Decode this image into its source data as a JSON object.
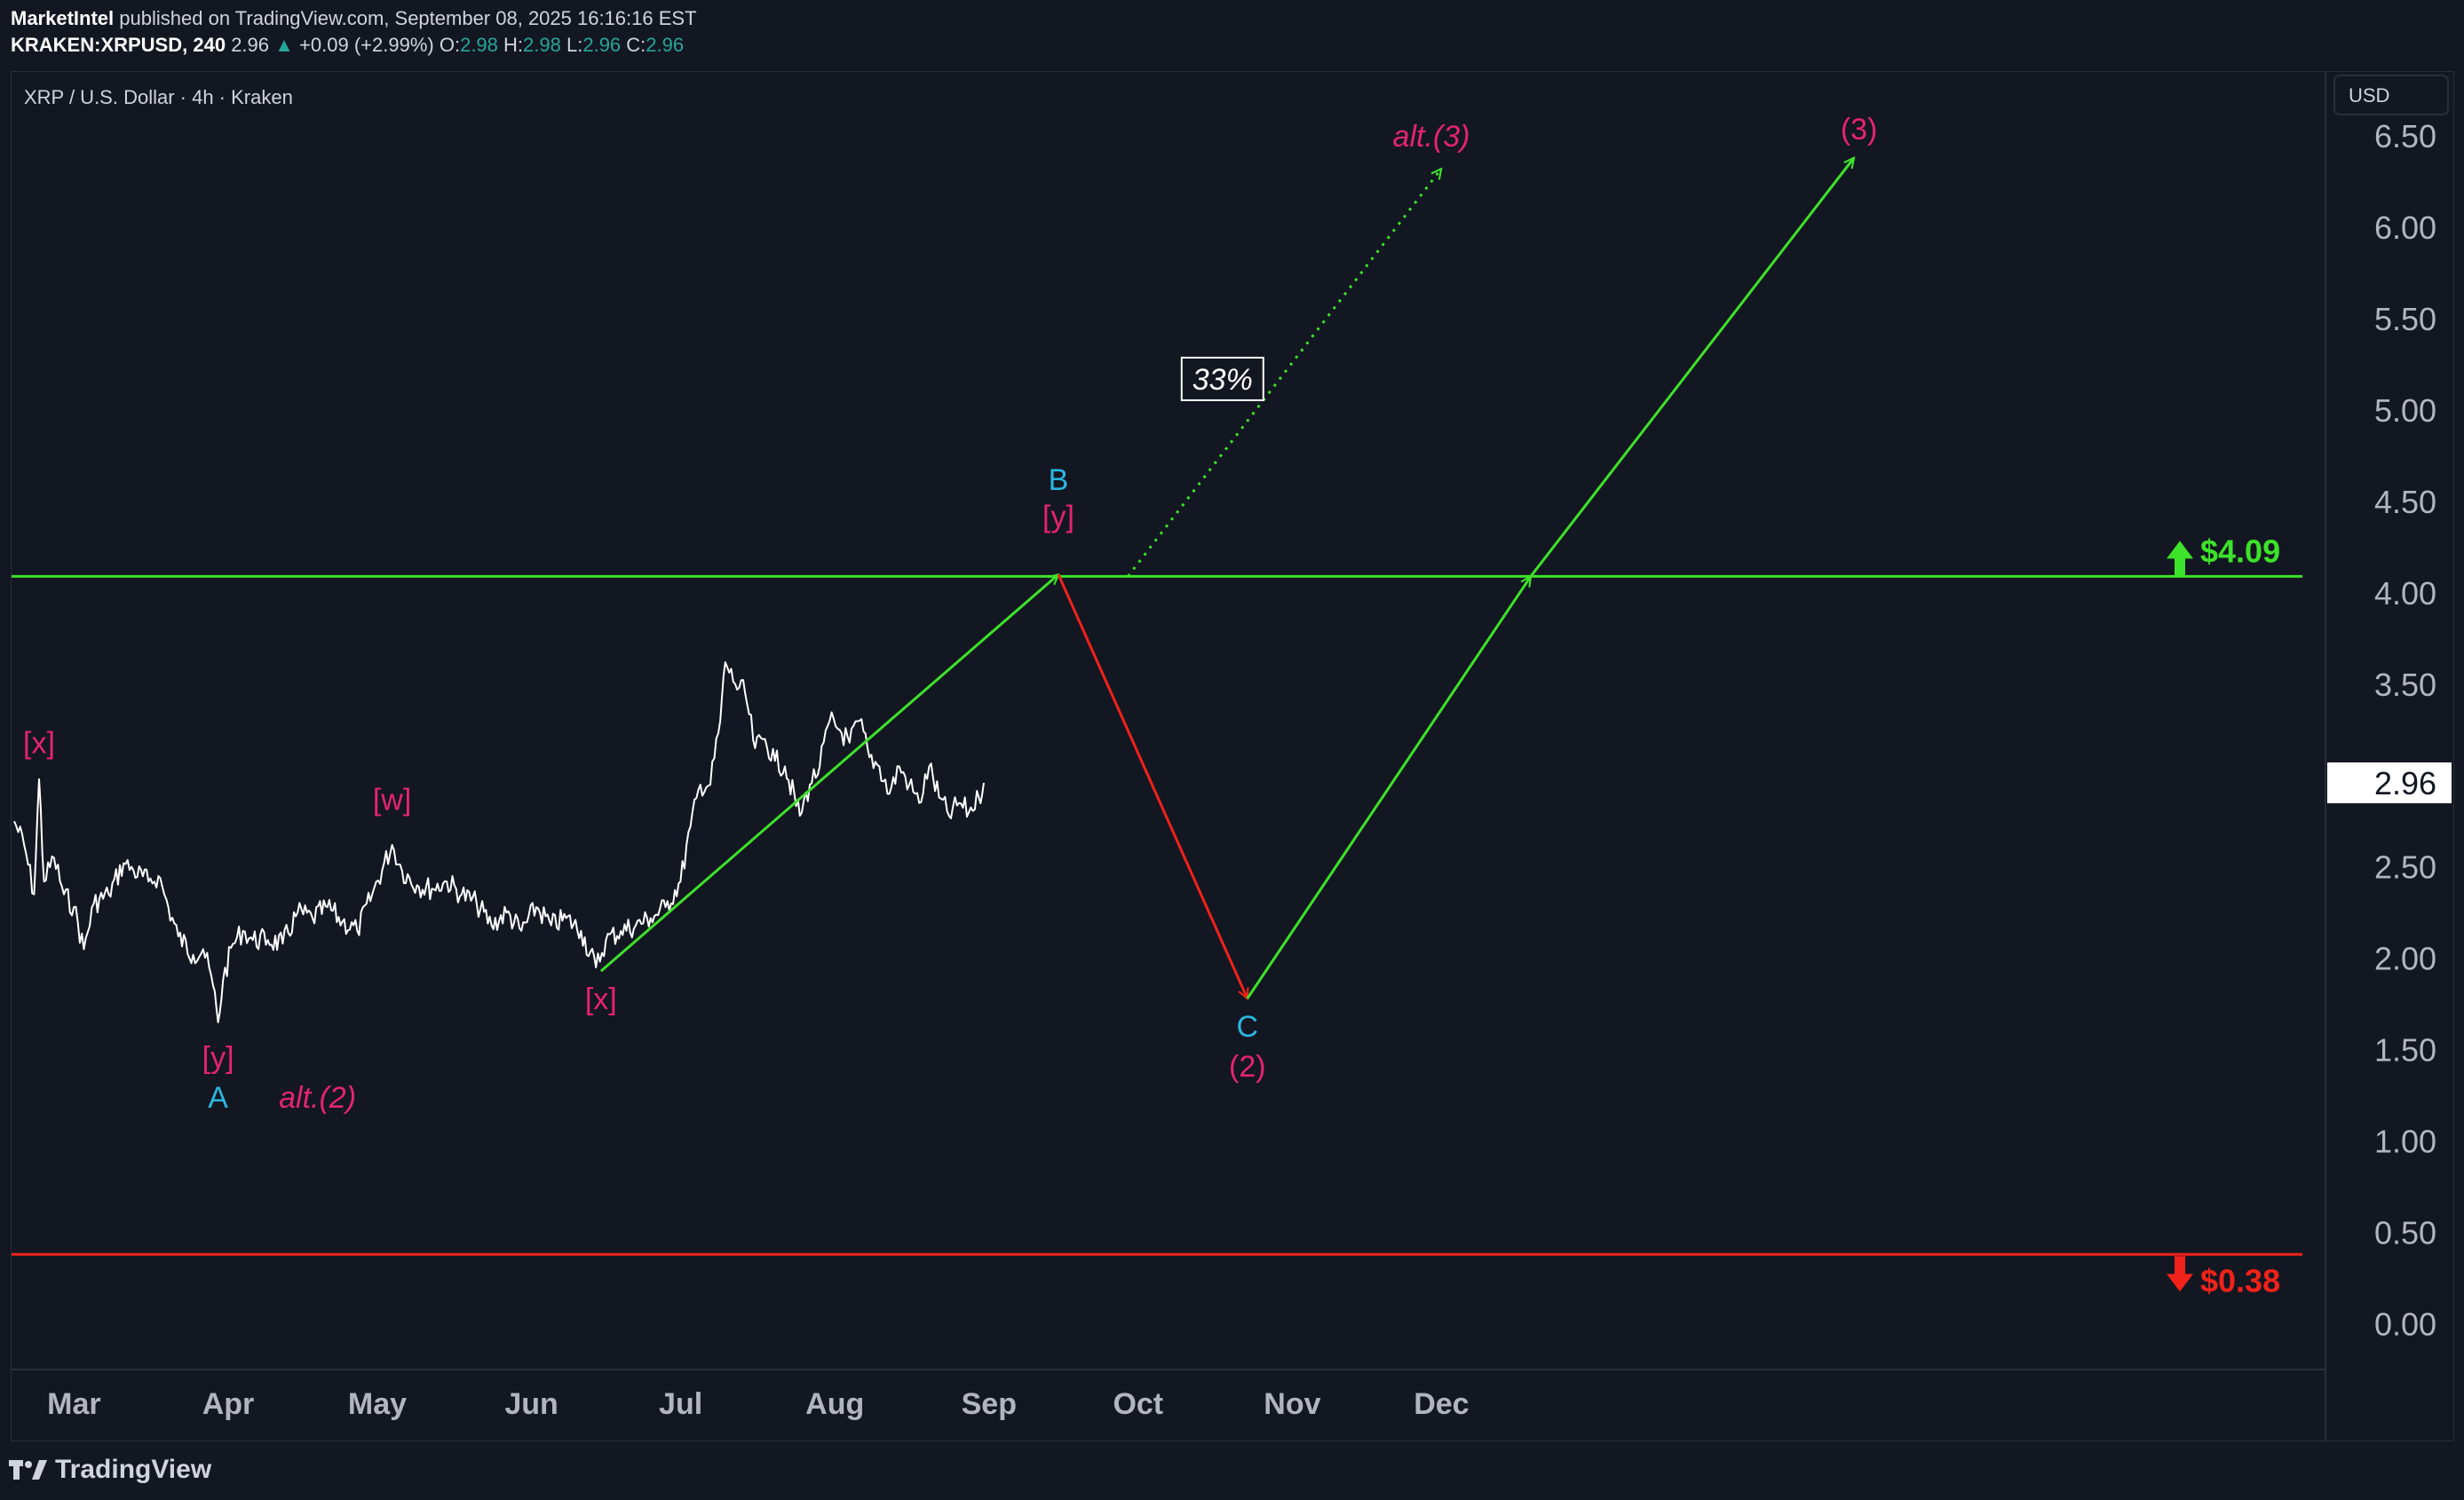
{
  "header": {
    "publisher": "MarketIntel",
    "published_text": "published on TradingView.com, September 08, 2025 16:16:16 EST",
    "symbol": "KRAKEN:XRPUSD, 240",
    "last": "2.96",
    "change": "+0.09 (+2.99%)",
    "o_label": "O:",
    "o_value": "2.98",
    "h_label": "H:",
    "h_value": "2.98",
    "l_label": "L:",
    "l_value": "2.96",
    "c_label": "C:",
    "c_value": "2.96"
  },
  "chart_title": "XRP / U.S. Dollar · 4h · Kraken",
  "currency": "USD",
  "footer": {
    "brand": "TradingView"
  },
  "colors": {
    "background": "#131722",
    "green": "#3de22a",
    "red": "#f0221a",
    "magenta": "#e6246e",
    "cyan": "#2ab7e0",
    "price_line": "#ffffff"
  },
  "chart_data": {
    "type": "line",
    "title": "XRP / U.S. Dollar · 4h · Kraken",
    "ylim": [
      -0.25,
      6.85
    ],
    "y_ticks": [
      "0.00",
      "0.50",
      "1.00",
      "1.50",
      "2.00",
      "2.50",
      "3.00",
      "3.50",
      "4.00",
      "4.50",
      "5.00",
      "5.50",
      "6.00",
      "6.50"
    ],
    "x_ticks": [
      "Mar",
      "Apr",
      "May",
      "Jun",
      "Jul",
      "Aug",
      "Sep",
      "Oct",
      "Nov",
      "Dec"
    ],
    "x_tick_dates": [
      "2025-03-01",
      "2025-04-01",
      "2025-05-01",
      "2025-06-01",
      "2025-07-01",
      "2025-08-01",
      "2025-09-01",
      "2025-10-01",
      "2025-11-01",
      "2025-12-01"
    ],
    "last_price": "2.96",
    "price_series": [
      [
        "2025-02-25",
        2.75
      ],
      [
        "2025-02-27",
        2.62
      ],
      [
        "2025-03-01",
        2.35
      ],
      [
        "2025-03-02",
        2.98
      ],
      [
        "2025-03-03",
        2.42
      ],
      [
        "2025-03-05",
        2.55
      ],
      [
        "2025-03-07",
        2.35
      ],
      [
        "2025-03-09",
        2.28
      ],
      [
        "2025-03-11",
        2.05
      ],
      [
        "2025-03-13",
        2.3
      ],
      [
        "2025-03-16",
        2.35
      ],
      [
        "2025-03-19",
        2.52
      ],
      [
        "2025-03-21",
        2.48
      ],
      [
        "2025-03-24",
        2.42
      ],
      [
        "2025-03-26",
        2.45
      ],
      [
        "2025-03-28",
        2.28
      ],
      [
        "2025-03-30",
        2.12
      ],
      [
        "2025-04-02",
        2.02
      ],
      [
        "2025-04-04",
        2.05
      ],
      [
        "2025-04-06",
        1.85
      ],
      [
        "2025-04-07",
        1.65
      ],
      [
        "2025-04-08",
        1.88
      ],
      [
        "2025-04-10",
        2.08
      ],
      [
        "2025-04-12",
        2.15
      ],
      [
        "2025-04-14",
        2.1
      ],
      [
        "2025-04-17",
        2.1
      ],
      [
        "2025-04-20",
        2.08
      ],
      [
        "2025-04-23",
        2.25
      ],
      [
        "2025-04-26",
        2.22
      ],
      [
        "2025-04-29",
        2.28
      ],
      [
        "2025-05-02",
        2.2
      ],
      [
        "2025-05-05",
        2.15
      ],
      [
        "2025-05-08",
        2.35
      ],
      [
        "2025-05-12",
        2.62
      ],
      [
        "2025-05-14",
        2.48
      ],
      [
        "2025-05-17",
        2.4
      ],
      [
        "2025-05-20",
        2.38
      ],
      [
        "2025-05-23",
        2.42
      ],
      [
        "2025-05-26",
        2.35
      ],
      [
        "2025-05-29",
        2.3
      ],
      [
        "2025-06-01",
        2.18
      ],
      [
        "2025-06-04",
        2.25
      ],
      [
        "2025-06-07",
        2.15
      ],
      [
        "2025-06-10",
        2.28
      ],
      [
        "2025-06-13",
        2.18
      ],
      [
        "2025-06-16",
        2.22
      ],
      [
        "2025-06-19",
        2.15
      ],
      [
        "2025-06-22",
        1.95
      ],
      [
        "2025-06-24",
        2.1
      ],
      [
        "2025-06-27",
        2.15
      ],
      [
        "2025-06-30",
        2.18
      ],
      [
        "2025-07-03",
        2.22
      ],
      [
        "2025-07-06",
        2.28
      ],
      [
        "2025-07-09",
        2.42
      ],
      [
        "2025-07-11",
        2.72
      ],
      [
        "2025-07-13",
        2.95
      ],
      [
        "2025-07-15",
        2.95
      ],
      [
        "2025-07-17",
        3.3
      ],
      [
        "2025-07-18",
        3.62
      ],
      [
        "2025-07-20",
        3.5
      ],
      [
        "2025-07-22",
        3.45
      ],
      [
        "2025-07-24",
        3.15
      ],
      [
        "2025-07-26",
        3.2
      ],
      [
        "2025-07-28",
        3.08
      ],
      [
        "2025-07-30",
        3.05
      ],
      [
        "2025-08-02",
        2.78
      ],
      [
        "2025-08-04",
        2.95
      ],
      [
        "2025-08-06",
        3.05
      ],
      [
        "2025-08-08",
        3.3
      ],
      [
        "2025-08-10",
        3.25
      ],
      [
        "2025-08-12",
        3.18
      ],
      [
        "2025-08-14",
        3.3
      ],
      [
        "2025-08-16",
        3.1
      ],
      [
        "2025-08-18",
        3.05
      ],
      [
        "2025-08-20",
        2.9
      ],
      [
        "2025-08-22",
        3.05
      ],
      [
        "2025-08-24",
        2.95
      ],
      [
        "2025-08-26",
        2.85
      ],
      [
        "2025-08-28",
        3.05
      ],
      [
        "2025-08-30",
        2.88
      ],
      [
        "2025-09-01",
        2.78
      ],
      [
        "2025-09-03",
        2.85
      ],
      [
        "2025-09-05",
        2.8
      ],
      [
        "2025-09-07",
        2.88
      ],
      [
        "2025-09-08",
        2.96
      ]
    ],
    "levels": [
      {
        "price": 4.09,
        "label": "$4.09",
        "color": "#3de22a",
        "arrow": "up"
      },
      {
        "price": 0.38,
        "label": "$0.38",
        "color": "#f0221a",
        "arrow": "down"
      }
    ],
    "wave_paths": [
      {
        "color": "#3de22a",
        "style": "solid",
        "from": [
          "2025-06-23",
          1.93
        ],
        "to": [
          "2025-09-23",
          4.1
        ],
        "arrow": true
      },
      {
        "color": "#f0221a",
        "style": "solid",
        "from": [
          "2025-09-23",
          4.1
        ],
        "to": [
          "2025-10-31",
          1.78
        ],
        "arrow": true
      },
      {
        "color": "#3de22a",
        "style": "solid",
        "from": [
          "2025-10-31",
          1.78
        ],
        "to": [
          "2025-12-27",
          4.09
        ],
        "arrow": true
      },
      {
        "color": "#3de22a",
        "style": "solid",
        "from": [
          "2025-12-27",
          4.09
        ],
        "to": [
          "2026-03-02",
          6.38
        ],
        "arrow": true
      },
      {
        "color": "#3de22a",
        "style": "dotted",
        "from": [
          "2025-10-07",
          4.09
        ],
        "to": [
          "2025-12-09",
          6.32
        ],
        "arrow": true
      }
    ],
    "annotations": [
      {
        "text": "[x]",
        "date": "2025-03-02",
        "price": 3.18,
        "color": "#e6246e"
      },
      {
        "text": "[w]",
        "date": "2025-05-12",
        "price": 2.87,
        "color": "#e6246e"
      },
      {
        "text": "[y]",
        "date": "2025-04-07",
        "price": 1.46,
        "color": "#e6246e"
      },
      {
        "text": "A",
        "date": "2025-04-07",
        "price": 1.24,
        "color": "#2ab7e0"
      },
      {
        "text": "alt.(2)",
        "date": "2025-04-27",
        "price": 1.24,
        "color": "#e6246e",
        "italic": true
      },
      {
        "text": "[x]",
        "date": "2025-06-23",
        "price": 1.78,
        "color": "#e6246e"
      },
      {
        "text": "B",
        "date": "2025-09-23",
        "price": 4.62,
        "color": "#2ab7e0"
      },
      {
        "text": "[y]",
        "date": "2025-09-23",
        "price": 4.42,
        "color": "#e6246e"
      },
      {
        "text": "C",
        "date": "2025-10-31",
        "price": 1.63,
        "color": "#2ab7e0"
      },
      {
        "text": "(2)",
        "date": "2025-10-31",
        "price": 1.41,
        "color": "#e6246e"
      },
      {
        "text": "alt.(3)",
        "date": "2025-12-07",
        "price": 6.5,
        "color": "#e6246e",
        "italic": true
      },
      {
        "text": "(3)",
        "date": "2026-03-03",
        "price": 6.54,
        "color": "#e6246e"
      }
    ],
    "callout": {
      "text": "33%",
      "date": "2025-10-26",
      "price": 5.17
    }
  }
}
